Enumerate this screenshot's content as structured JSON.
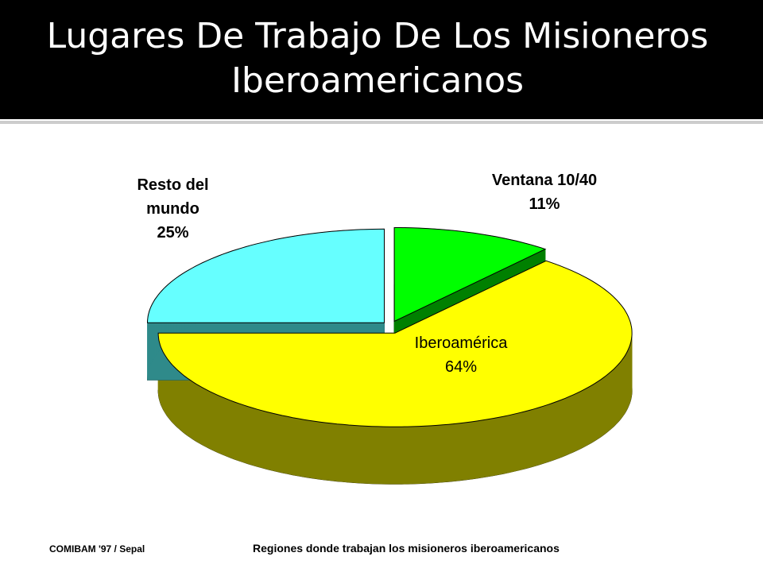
{
  "chart_data": {
    "type": "pie",
    "title": "Lugares De Trabajo De Los Misioneros Iberoamericanos",
    "categories": [
      "Ventana 10/40",
      "Iberoamérica",
      "Resto del mundo"
    ],
    "values": [
      11,
      64,
      25
    ],
    "value_labels": [
      "11%",
      "64%",
      "25%"
    ],
    "colors": [
      "#00ff00",
      "#ffff00",
      "#66ffff"
    ],
    "side_colors": [
      "#008000",
      "#808000",
      "#2f8a8a"
    ],
    "source": "COMIBAM '97 / Sepal",
    "caption": "Regiones donde trabajan los misioneros iberoamericanos"
  }
}
